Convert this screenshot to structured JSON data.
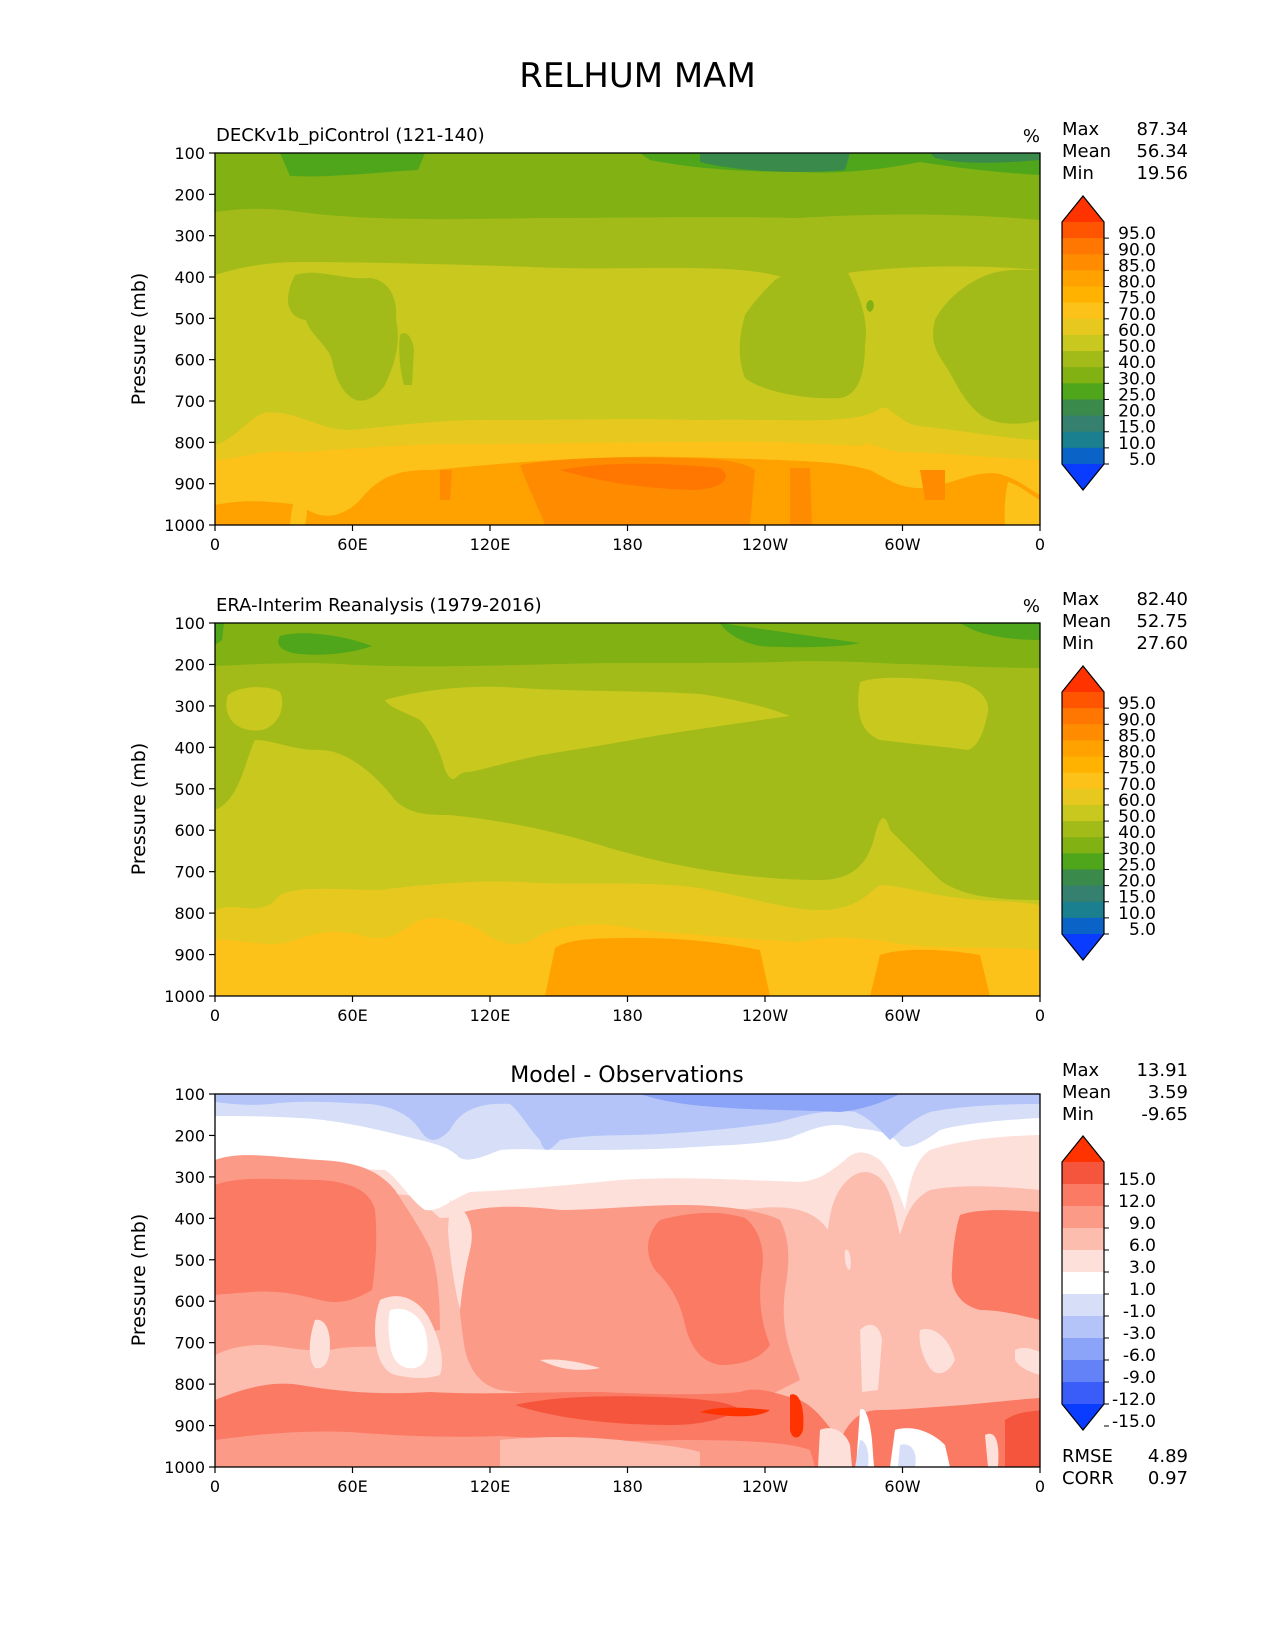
{
  "title": "RELHUM MAM",
  "stats_labels": {
    "max": "Max",
    "mean": "Mean",
    "min": "Min",
    "rmse": "RMSE",
    "corr": "CORR"
  },
  "chart_data": [
    {
      "type": "heatmap",
      "title": "DECKv1b_piControl (121-140)",
      "units": "%",
      "ylabel": "Pressure (mb)",
      "y_ticks": [
        "100",
        "200",
        "300",
        "400",
        "500",
        "600",
        "700",
        "800",
        "900",
        "1000"
      ],
      "x_ticks": [
        "0",
        "60E",
        "120E",
        "180",
        "120W",
        "60W",
        "0"
      ],
      "stats": {
        "max": "87.34",
        "mean": "56.34",
        "min": "19.56"
      },
      "colorbar_labels": [
        "95.0",
        "90.0",
        "85.0",
        "80.0",
        "75.0",
        "70.0",
        "60.0",
        "50.0",
        "40.0",
        "30.0",
        "25.0",
        "20.0",
        "15.0",
        "10.0",
        "5.0"
      ],
      "colorbar_colors": [
        "#ff3300",
        "#ff5500",
        "#ff7700",
        "#ff8c00",
        "#ffa200",
        "#ffb300",
        "#fcc21a",
        "#e6c81e",
        "#c8c81e",
        "#a3bb19",
        "#82b114",
        "#4fa61b",
        "#3a8a4b",
        "#35806e",
        "#1a7f8f",
        "#0a64c8",
        "#0a3cff"
      ],
      "bands": [
        {
          "name": "upper",
          "color": "#82b114"
        },
        {
          "name": "mid",
          "color": "#c8c81e"
        },
        {
          "name": "dry-blobs",
          "color": "#a3bb19"
        },
        {
          "name": "lower",
          "color": "#fcc21a"
        },
        {
          "name": "surface",
          "color": "#ffa200"
        },
        {
          "name": "max",
          "color": "#ff7700"
        }
      ]
    },
    {
      "type": "heatmap",
      "title": "ERA-Interim Reanalysis (1979-2016)",
      "units": "%",
      "ylabel": "Pressure (mb)",
      "y_ticks": [
        "100",
        "200",
        "300",
        "400",
        "500",
        "600",
        "700",
        "800",
        "900",
        "1000"
      ],
      "x_ticks": [
        "0",
        "60E",
        "120E",
        "180",
        "120W",
        "60W",
        "0"
      ],
      "stats": {
        "max": "82.40",
        "mean": "52.75",
        "min": "27.60"
      },
      "colorbar_labels": [
        "95.0",
        "90.0",
        "85.0",
        "80.0",
        "75.0",
        "70.0",
        "60.0",
        "50.0",
        "40.0",
        "30.0",
        "25.0",
        "20.0",
        "15.0",
        "10.0",
        "5.0"
      ],
      "colorbar_colors": [
        "#ff3300",
        "#ff5500",
        "#ff7700",
        "#ff8c00",
        "#ffa200",
        "#ffb300",
        "#fcc21a",
        "#e6c81e",
        "#c8c81e",
        "#a3bb19",
        "#82b114",
        "#4fa61b",
        "#3a8a4b",
        "#35806e",
        "#1a7f8f",
        "#0a64c8",
        "#0a3cff"
      ]
    },
    {
      "type": "heatmap",
      "title": "Model - Observations",
      "ylabel": "Pressure (mb)",
      "y_ticks": [
        "100",
        "200",
        "300",
        "400",
        "500",
        "600",
        "700",
        "800",
        "900",
        "1000"
      ],
      "x_ticks": [
        "0",
        "60E",
        "120E",
        "180",
        "120W",
        "60W",
        "0"
      ],
      "stats": {
        "max": "13.91",
        "mean": "3.59",
        "min": "-9.65",
        "rmse": "4.89",
        "corr": "0.97"
      },
      "colorbar_labels": [
        "15.0",
        "12.0",
        "9.0",
        "6.0",
        "3.0",
        "1.0",
        "-1.0",
        "-3.0",
        "-6.0",
        "-9.0",
        "-12.0",
        "-15.0"
      ],
      "colorbar_colors": [
        "#ff3300",
        "#f5553c",
        "#fa7a64",
        "#fc9a88",
        "#fcbcae",
        "#fde0da",
        "#ffffff",
        "#d6def8",
        "#b4c4f8",
        "#8ca4f8",
        "#6482f8",
        "#3a5cf8",
        "#0a3cff"
      ]
    }
  ]
}
